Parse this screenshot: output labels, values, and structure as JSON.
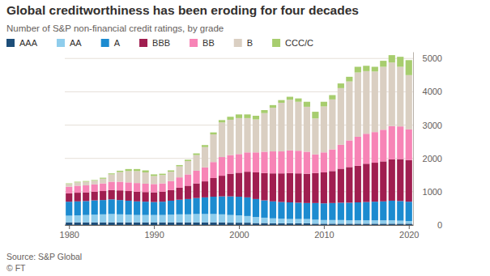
{
  "chart_data": {
    "type": "bar",
    "stacked": true,
    "title": "Global creditworthiness has been eroding for four decades",
    "subtitle": "Number of S&P non-financial credit ratings, by grade",
    "annotations": [
      "Source: S&P Global",
      "© FT"
    ],
    "legend": "top-left",
    "grid": true,
    "x": [
      1980,
      1981,
      1982,
      1983,
      1984,
      1985,
      1986,
      1987,
      1988,
      1989,
      1990,
      1991,
      1992,
      1993,
      1994,
      1995,
      1996,
      1997,
      1998,
      1999,
      2000,
      2001,
      2002,
      2003,
      2004,
      2005,
      2006,
      2007,
      2008,
      2009,
      2010,
      2011,
      2012,
      2013,
      2014,
      2015,
      2016,
      2017,
      2018,
      2019,
      2020
    ],
    "xlim": [
      1979.5,
      2020.5
    ],
    "xticks": [
      1980,
      1990,
      2000,
      2010,
      2020
    ],
    "ylim": [
      0,
      5200
    ],
    "yticks": [
      0,
      1000,
      2000,
      3000,
      4000,
      5000
    ],
    "series": [
      {
        "name": "AAA",
        "color": "#1d4e79",
        "values": [
          80,
          80,
          80,
          80,
          80,
          80,
          80,
          80,
          80,
          80,
          80,
          80,
          80,
          80,
          80,
          80,
          80,
          80,
          80,
          70,
          70,
          70,
          60,
          60,
          50,
          50,
          50,
          50,
          50,
          40,
          40,
          40,
          40,
          40,
          40,
          40,
          40,
          40,
          40,
          40,
          40
        ]
      },
      {
        "name": "AA",
        "color": "#8fcdec",
        "values": [
          200,
          210,
          220,
          230,
          240,
          250,
          240,
          230,
          220,
          220,
          220,
          220,
          230,
          240,
          240,
          250,
          250,
          250,
          240,
          230,
          220,
          200,
          180,
          160,
          150,
          140,
          130,
          130,
          130,
          120,
          110,
          110,
          110,
          100,
          100,
          100,
          100,
          100,
          100,
          90,
          80
        ]
      },
      {
        "name": "A",
        "color": "#1c8bd0",
        "values": [
          420,
          420,
          420,
          430,
          430,
          440,
          430,
          420,
          410,
          400,
          390,
          400,
          420,
          440,
          460,
          480,
          500,
          520,
          540,
          560,
          560,
          560,
          540,
          520,
          510,
          500,
          500,
          490,
          480,
          500,
          500,
          510,
          520,
          530,
          540,
          550,
          560,
          570,
          590,
          590,
          580
        ]
      },
      {
        "name": "BBB",
        "color": "#a01e50",
        "values": [
          250,
          260,
          260,
          260,
          270,
          280,
          290,
          290,
          290,
          290,
          290,
          300,
          320,
          360,
          400,
          440,
          480,
          560,
          620,
          680,
          720,
          770,
          800,
          820,
          840,
          860,
          880,
          880,
          880,
          900,
          930,
          960,
          1020,
          1070,
          1100,
          1150,
          1170,
          1200,
          1240,
          1260,
          1250
        ]
      },
      {
        "name": "BB",
        "color": "#f784b6",
        "values": [
          200,
          210,
          210,
          220,
          230,
          250,
          260,
          260,
          260,
          250,
          250,
          250,
          270,
          310,
          340,
          380,
          420,
          480,
          560,
          560,
          560,
          580,
          600,
          640,
          660,
          660,
          680,
          680,
          660,
          560,
          600,
          650,
          720,
          800,
          870,
          900,
          920,
          950,
          1000,
          980,
          920
        ]
      },
      {
        "name": "B",
        "color": "#dacfc2",
        "values": [
          80,
          100,
          110,
          110,
          140,
          220,
          290,
          340,
          360,
          340,
          240,
          250,
          280,
          330,
          400,
          470,
          610,
          830,
          1040,
          1060,
          1080,
          1030,
          990,
          1160,
          1310,
          1460,
          1520,
          1470,
          1350,
          1080,
          1380,
          1500,
          1700,
          1770,
          1930,
          1880,
          1820,
          1890,
          1910,
          1790,
          1630
        ]
      },
      {
        "name": "CCC/C",
        "color": "#a7cd6e",
        "values": [
          20,
          20,
          20,
          20,
          30,
          30,
          40,
          60,
          60,
          60,
          50,
          40,
          40,
          40,
          40,
          50,
          60,
          60,
          70,
          90,
          110,
          110,
          110,
          90,
          80,
          80,
          90,
          100,
          150,
          200,
          140,
          130,
          140,
          140,
          170,
          160,
          140,
          180,
          220,
          300,
          450
        ]
      }
    ]
  }
}
